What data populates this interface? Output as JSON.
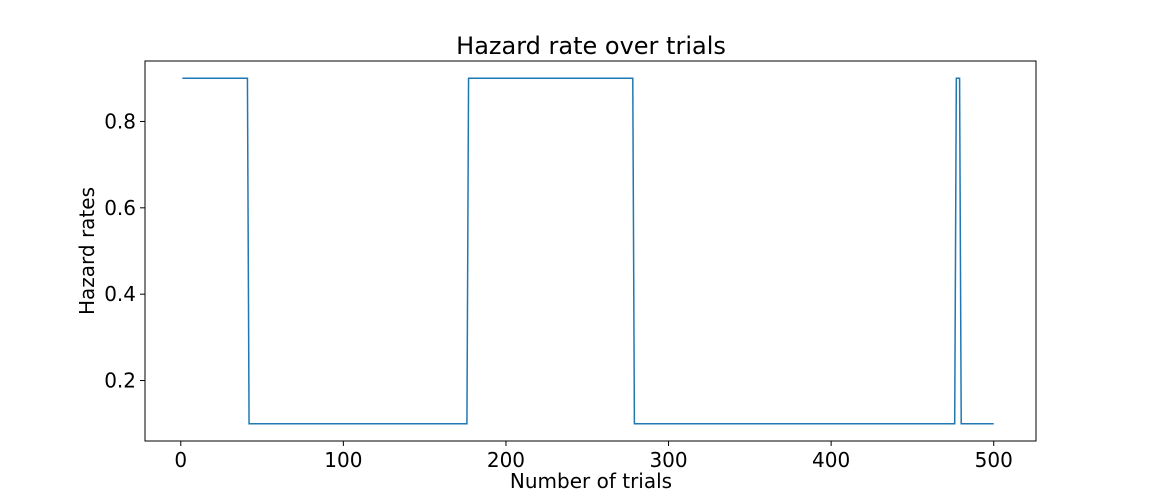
{
  "chart_data": {
    "type": "line",
    "title": "Hazard rate over trials",
    "xlabel": "Number of trials",
    "ylabel": "Hazard rates",
    "xlim": [
      -22,
      526
    ],
    "ylim": [
      0.06,
      0.94
    ],
    "xticks": [
      0,
      100,
      200,
      300,
      400,
      500
    ],
    "yticks": [
      0.2,
      0.4,
      0.6,
      0.8
    ],
    "xtick_labels": [
      "0",
      "100",
      "200",
      "300",
      "400",
      "500"
    ],
    "ytick_labels": [
      "0.2",
      "0.4",
      "0.6",
      "0.8"
    ],
    "grid": false,
    "legend": "none",
    "series": [
      {
        "color": "#1f77b4",
        "x": [
          1,
          41,
          42,
          176,
          177,
          278,
          279,
          476,
          477,
          479,
          480,
          500
        ],
        "y": [
          0.9,
          0.9,
          0.1,
          0.1,
          0.9,
          0.9,
          0.1,
          0.1,
          0.9,
          0.9,
          0.1,
          0.1
        ]
      }
    ]
  }
}
